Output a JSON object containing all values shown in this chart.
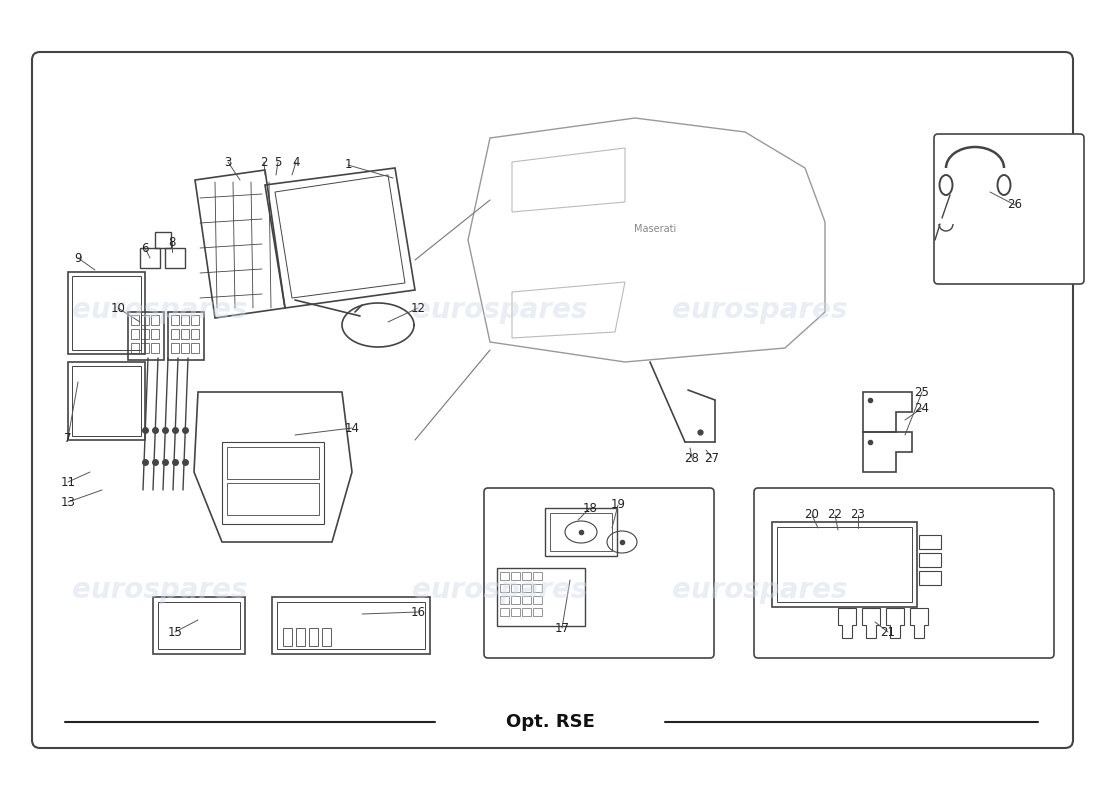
{
  "title": "Opt. RSE",
  "background_color": "#ffffff",
  "border_color": "#333333",
  "line_color": "#444444",
  "watermark_color": "#d0d8e8",
  "watermark_text": "eurospares",
  "main_border": [
    40,
    60,
    1025,
    680
  ]
}
